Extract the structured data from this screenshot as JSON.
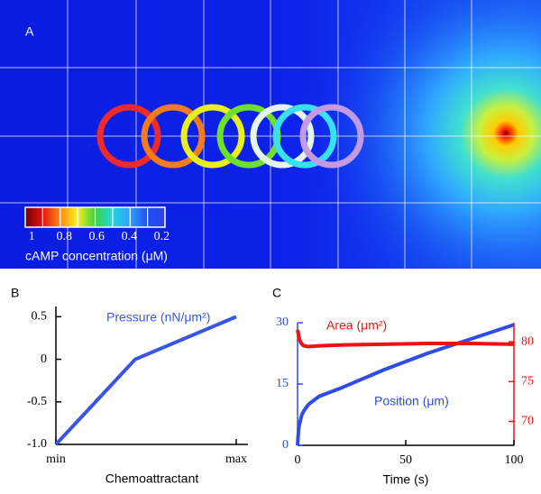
{
  "chart_data": [
    {
      "type": "field",
      "panel_label": "A",
      "ring_colors": [
        "#ee2b2b",
        "#f07c1e",
        "#e8ee20",
        "#6fe02a",
        "#e6f5e6",
        "#38e0f0",
        "#c39ae6"
      ],
      "colorbar": {
        "label": "cAMP concentration (μM)",
        "clim": [
          1.04,
          0.18
        ],
        "ticks": [
          1,
          0.8,
          0.6,
          0.4,
          0.2
        ]
      }
    },
    {
      "type": "line",
      "panel_label": "B",
      "x_label": "Chemoattractant",
      "x": [
        0,
        0.44,
        1
      ],
      "series": [
        {
          "name": "Pressure (nN/μm²)",
          "color": "#3a55e6",
          "values": [
            -1,
            0,
            0.5
          ]
        }
      ],
      "xlim": [
        0,
        1.065
      ],
      "xticks": [
        {
          "value": 0,
          "label": "min"
        },
        {
          "value": 1,
          "label": "max"
        }
      ],
      "ylim": [
        -1,
        0.62
      ],
      "yticks": [
        0.5,
        0,
        -0.5,
        {
          "value": -1,
          "label": "-1.0"
        }
      ]
    },
    {
      "type": "line",
      "panel_label": "C",
      "x_label": "Time (s)",
      "x": [
        0,
        0.5,
        1,
        2,
        3,
        5,
        10,
        20,
        40,
        60,
        80,
        100
      ],
      "series": [
        {
          "name": "Position (μm)",
          "color": "#2f4ce6",
          "values": [
            0,
            4,
            5.5,
            7.5,
            8.5,
            10,
            12,
            14,
            18.5,
            22.5,
            26,
            29.5
          ]
        },
        {
          "name": "Area (μm²)",
          "color": "#ee1111",
          "axis": "y2",
          "values": [
            81.5,
            80.8,
            80.2,
            79.7,
            79.5,
            79.4,
            79.5,
            79.6,
            79.7,
            79.8,
            79.8,
            79.7
          ]
        }
      ],
      "xlim": [
        0,
        100
      ],
      "xticks": [
        0,
        50,
        100
      ],
      "ylim": [
        0,
        30
      ],
      "yticks": [
        0,
        15,
        30
      ],
      "y2lim": [
        67,
        82.4
      ],
      "y2ticks": [
        70,
        75,
        80
      ]
    }
  ]
}
